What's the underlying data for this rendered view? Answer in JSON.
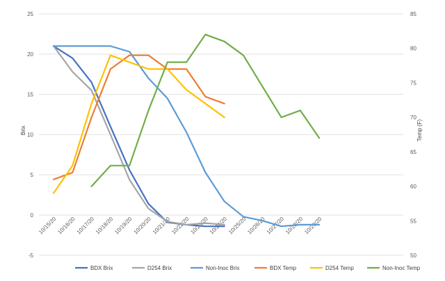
{
  "chart_data": {
    "type": "line",
    "title": "",
    "ylabel": "Brix",
    "y2label": "Temp (F)",
    "ylim": [
      -5,
      25
    ],
    "y_ticks": [
      -5,
      0,
      5,
      10,
      15,
      20,
      25
    ],
    "y2lim": [
      50,
      85
    ],
    "y2_ticks": [
      50,
      55,
      60,
      65,
      70,
      75,
      80,
      85
    ],
    "grid": true,
    "legend_position": "bottom",
    "categories": [
      "10/15/20",
      "10/16/20",
      "10/17/20",
      "10/18/20",
      "10/19/20",
      "10/20/20",
      "10/21/20",
      "10/22/20",
      "10/23/20",
      "10/24/20",
      "10/25/20",
      "10/26/20",
      "10/27/20",
      "10/28/20",
      "10/29/20"
    ],
    "series": [
      {
        "name": "BDX Brix",
        "axis": "left",
        "color": "#4472c4",
        "values": [
          21,
          19.5,
          16.5,
          11,
          5.6,
          1.4,
          -0.9,
          -1.2,
          -1.4,
          -1.4,
          null,
          null,
          null,
          null,
          null
        ]
      },
      {
        "name": "D254 Brix",
        "axis": "left",
        "color": "#a5a5a5",
        "values": [
          21,
          17.8,
          15.5,
          10,
          4.4,
          0.8,
          -0.8,
          -1.2,
          -1.0,
          -1.2,
          null,
          null,
          null,
          null,
          null
        ]
      },
      {
        "name": "Non-Inoc Brix",
        "axis": "left",
        "color": "#5b9bd5",
        "values": [
          21,
          21,
          21,
          21,
          20.3,
          17,
          14.5,
          10.3,
          5.3,
          1.7,
          -0.2,
          -0.7,
          -1.4,
          -1.2,
          -1.2
        ]
      },
      {
        "name": "BDX Temp",
        "axis": "right",
        "color": "#ed7d31",
        "values": [
          61,
          62,
          70,
          77,
          79,
          79,
          77,
          77,
          73,
          72,
          null,
          null,
          null,
          null,
          null
        ]
      },
      {
        "name": "D254 Temp",
        "axis": "right",
        "color": "#ffc000",
        "values": [
          59,
          63,
          72,
          79,
          78,
          77,
          77,
          74,
          72,
          70,
          null,
          null,
          null,
          null,
          null
        ]
      },
      {
        "name": "Non-Inoc Temp",
        "axis": "right",
        "color": "#70ad47",
        "values": [
          null,
          null,
          60,
          63,
          63,
          71,
          78,
          78,
          82,
          81,
          79,
          74.5,
          70,
          71,
          67
        ]
      }
    ]
  }
}
